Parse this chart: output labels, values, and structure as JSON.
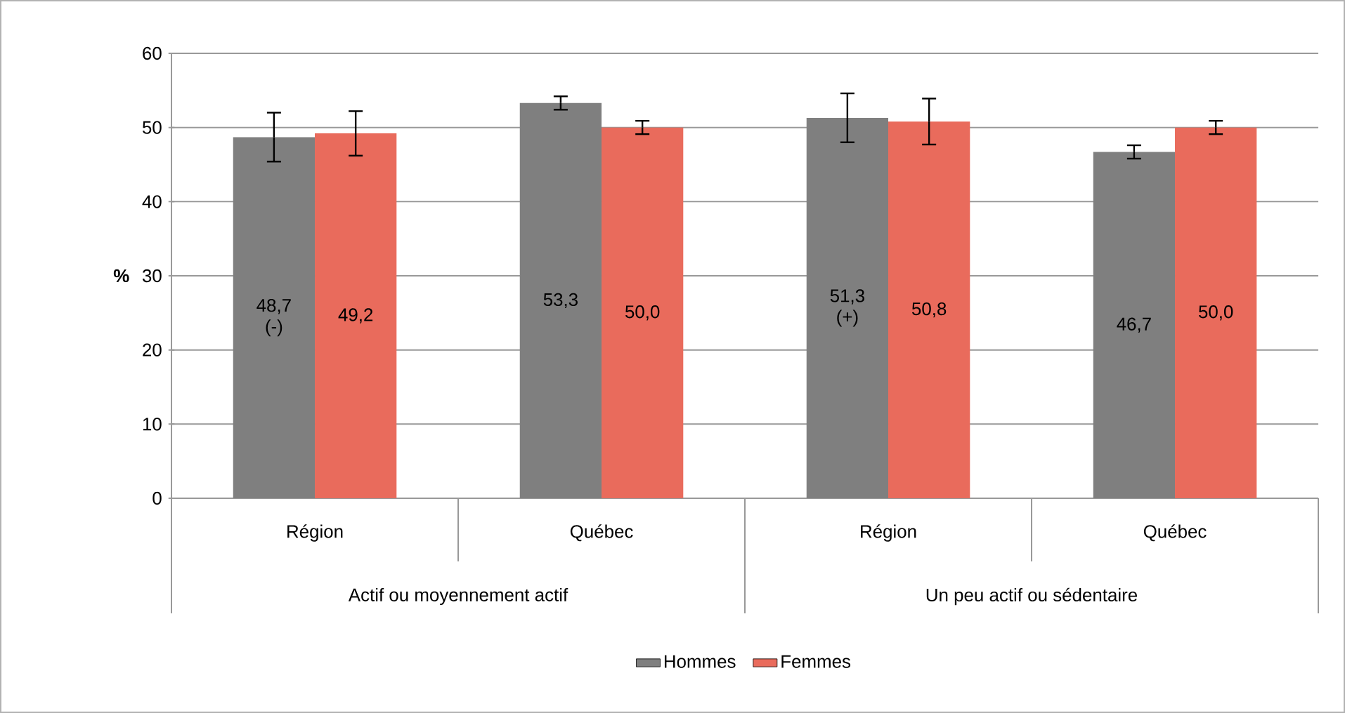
{
  "chart_data": {
    "type": "bar",
    "ylabel": "%",
    "categories": [
      "Région",
      "Québec",
      "Région",
      "Québec"
    ],
    "annotations": [
      "Actif ou moyennement actif",
      "Un peu actif ou sédentaire"
    ],
    "series": [
      {
        "name": "Hommes",
        "color": "#7f7f7f",
        "values": [
          48.7,
          53.3,
          51.3,
          46.7
        ],
        "errors": [
          3.3,
          0.9,
          3.3,
          0.9
        ],
        "value_labels": [
          "48,7 (-)",
          "53,3",
          "51,3 (+)",
          "46,7"
        ]
      },
      {
        "name": "Femmes",
        "color": "#e96b5c",
        "values": [
          49.2,
          50.0,
          50.8,
          50.0
        ],
        "errors": [
          3.0,
          0.9,
          3.1,
          0.9
        ],
        "value_labels": [
          "49,2",
          "50,0",
          "50,8",
          "50,0"
        ]
      }
    ],
    "ylim": [
      0,
      60
    ],
    "yticks": [
      0,
      10,
      20,
      30,
      40,
      50,
      60
    ],
    "grid": "y",
    "legend": "bottom"
  }
}
